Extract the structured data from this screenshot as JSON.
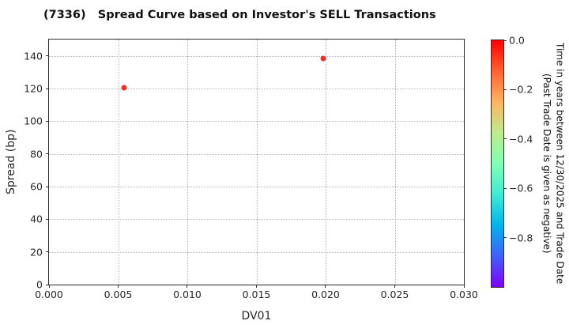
{
  "header": {
    "title": "(7336)   Spread Curve based on Investor's SELL Transactions"
  },
  "colors": {
    "point_red": "#ee3122",
    "spine": "#2b2b2b",
    "grid": "#b5b5b5",
    "text": "#262626",
    "background": "#ffffff"
  },
  "chart_data": {
    "type": "scatter",
    "title": "(7336)   Spread Curve based on Investor's SELL Transactions",
    "xlabel": "DV01",
    "ylabel": "Spread (bp)",
    "xlim": [
      0.0,
      0.03
    ],
    "ylim": [
      0,
      150
    ],
    "grid": "dotted",
    "legend_position": "none",
    "x_ticks": [
      {
        "v": 0.0,
        "label": "0.000"
      },
      {
        "v": 0.005,
        "label": "0.005"
      },
      {
        "v": 0.01,
        "label": "0.010"
      },
      {
        "v": 0.015,
        "label": "0.015"
      },
      {
        "v": 0.02,
        "label": "0.020"
      },
      {
        "v": 0.025,
        "label": "0.025"
      },
      {
        "v": 0.03,
        "label": "0.030"
      }
    ],
    "y_ticks": [
      {
        "v": 0,
        "label": "0"
      },
      {
        "v": 20,
        "label": "20"
      },
      {
        "v": 40,
        "label": "40"
      },
      {
        "v": 60,
        "label": "60"
      },
      {
        "v": 80,
        "label": "80"
      },
      {
        "v": 100,
        "label": "100"
      },
      {
        "v": 120,
        "label": "120"
      },
      {
        "v": 140,
        "label": "140"
      }
    ],
    "points": [
      {
        "dv01": 0.0054,
        "spread_bp": 120.5,
        "time_years_approx": 0.0,
        "color": "#ee3122"
      },
      {
        "dv01": 0.0198,
        "spread_bp": 138.5,
        "time_years_approx": 0.0,
        "color": "#ee3122"
      }
    ],
    "colorbar": {
      "colormap": "rainbow",
      "range": [
        0.0,
        -1.0
      ],
      "label_line1": "Time in years between 12/30/2025 and Trade Date",
      "label_line2": "(Past Trade Date is given as negative)",
      "ticks": [
        {
          "v": 0.0,
          "label": "0.0"
        },
        {
          "v": -0.2,
          "label": "−0.2"
        },
        {
          "v": -0.4,
          "label": "−0.4"
        },
        {
          "v": -0.6,
          "label": "−0.6"
        },
        {
          "v": -0.8,
          "label": "−0.8"
        }
      ],
      "gradient_stops": [
        {
          "pos": 0,
          "color": "#ff0000"
        },
        {
          "pos": 12.5,
          "color": "#ff6131"
        },
        {
          "pos": 25,
          "color": "#ffb461"
        },
        {
          "pos": 37.5,
          "color": "#bfeb8d"
        },
        {
          "pos": 50,
          "color": "#80ffb4"
        },
        {
          "pos": 62.5,
          "color": "#40ebd4"
        },
        {
          "pos": 75,
          "color": "#00b4eb"
        },
        {
          "pos": 87.5,
          "color": "#4061fa"
        },
        {
          "pos": 100,
          "color": "#8000ff"
        }
      ]
    }
  }
}
